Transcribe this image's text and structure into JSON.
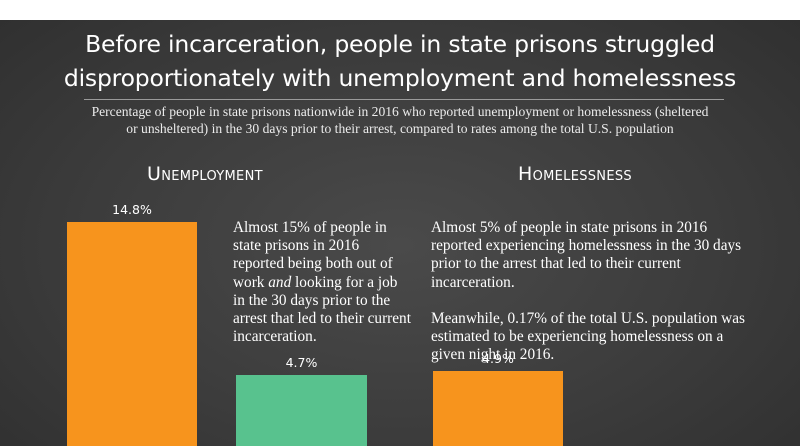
{
  "title_line1": "Before incarceration, people in state prisons struggled",
  "title_line2": "disproportionately with unemployment and homelessness",
  "subtitle_line1": "Percentage of people in state prisons nationwide in 2016 who reported unemployment or homelessness (sheltered",
  "subtitle_line2": "or unsheltered) in the 30 days prior to their arrest, compared to rates among the total U.S. population",
  "colors": {
    "prison": "#f7941d",
    "us_population": "#58c28e",
    "background": "#3c3c3c"
  },
  "chart_data": [
    {
      "type": "bar",
      "title": "Unemployment",
      "categories": [
        "",
        ""
      ],
      "values": [
        14.8,
        4.7
      ],
      "value_labels": [
        "14.8%",
        "4.7%"
      ],
      "bar_colors": [
        "#f7941d",
        "#58c28e"
      ],
      "note": [
        "Almost 15% of people in state prisons in 2016 reported being both out of work ",
        "and",
        " looking for a job in the 30 days prior to the arrest that led to their current incarceration."
      ]
    },
    {
      "type": "bar",
      "title": "Homelessness",
      "categories": [
        ""
      ],
      "values": [
        4.9
      ],
      "value_labels": [
        "4.9%"
      ],
      "bar_colors": [
        "#f7941d"
      ],
      "note_p1": "Almost 5% of people in state prisons in 2016 reported experiencing homelessness in the 30 days prior to the arrest that led to their current incarceration.",
      "note_p2": "Meanwhile, 0.17% of the total U.S. population was estimated to be experiencing homelessness on a given night in 2016."
    }
  ]
}
